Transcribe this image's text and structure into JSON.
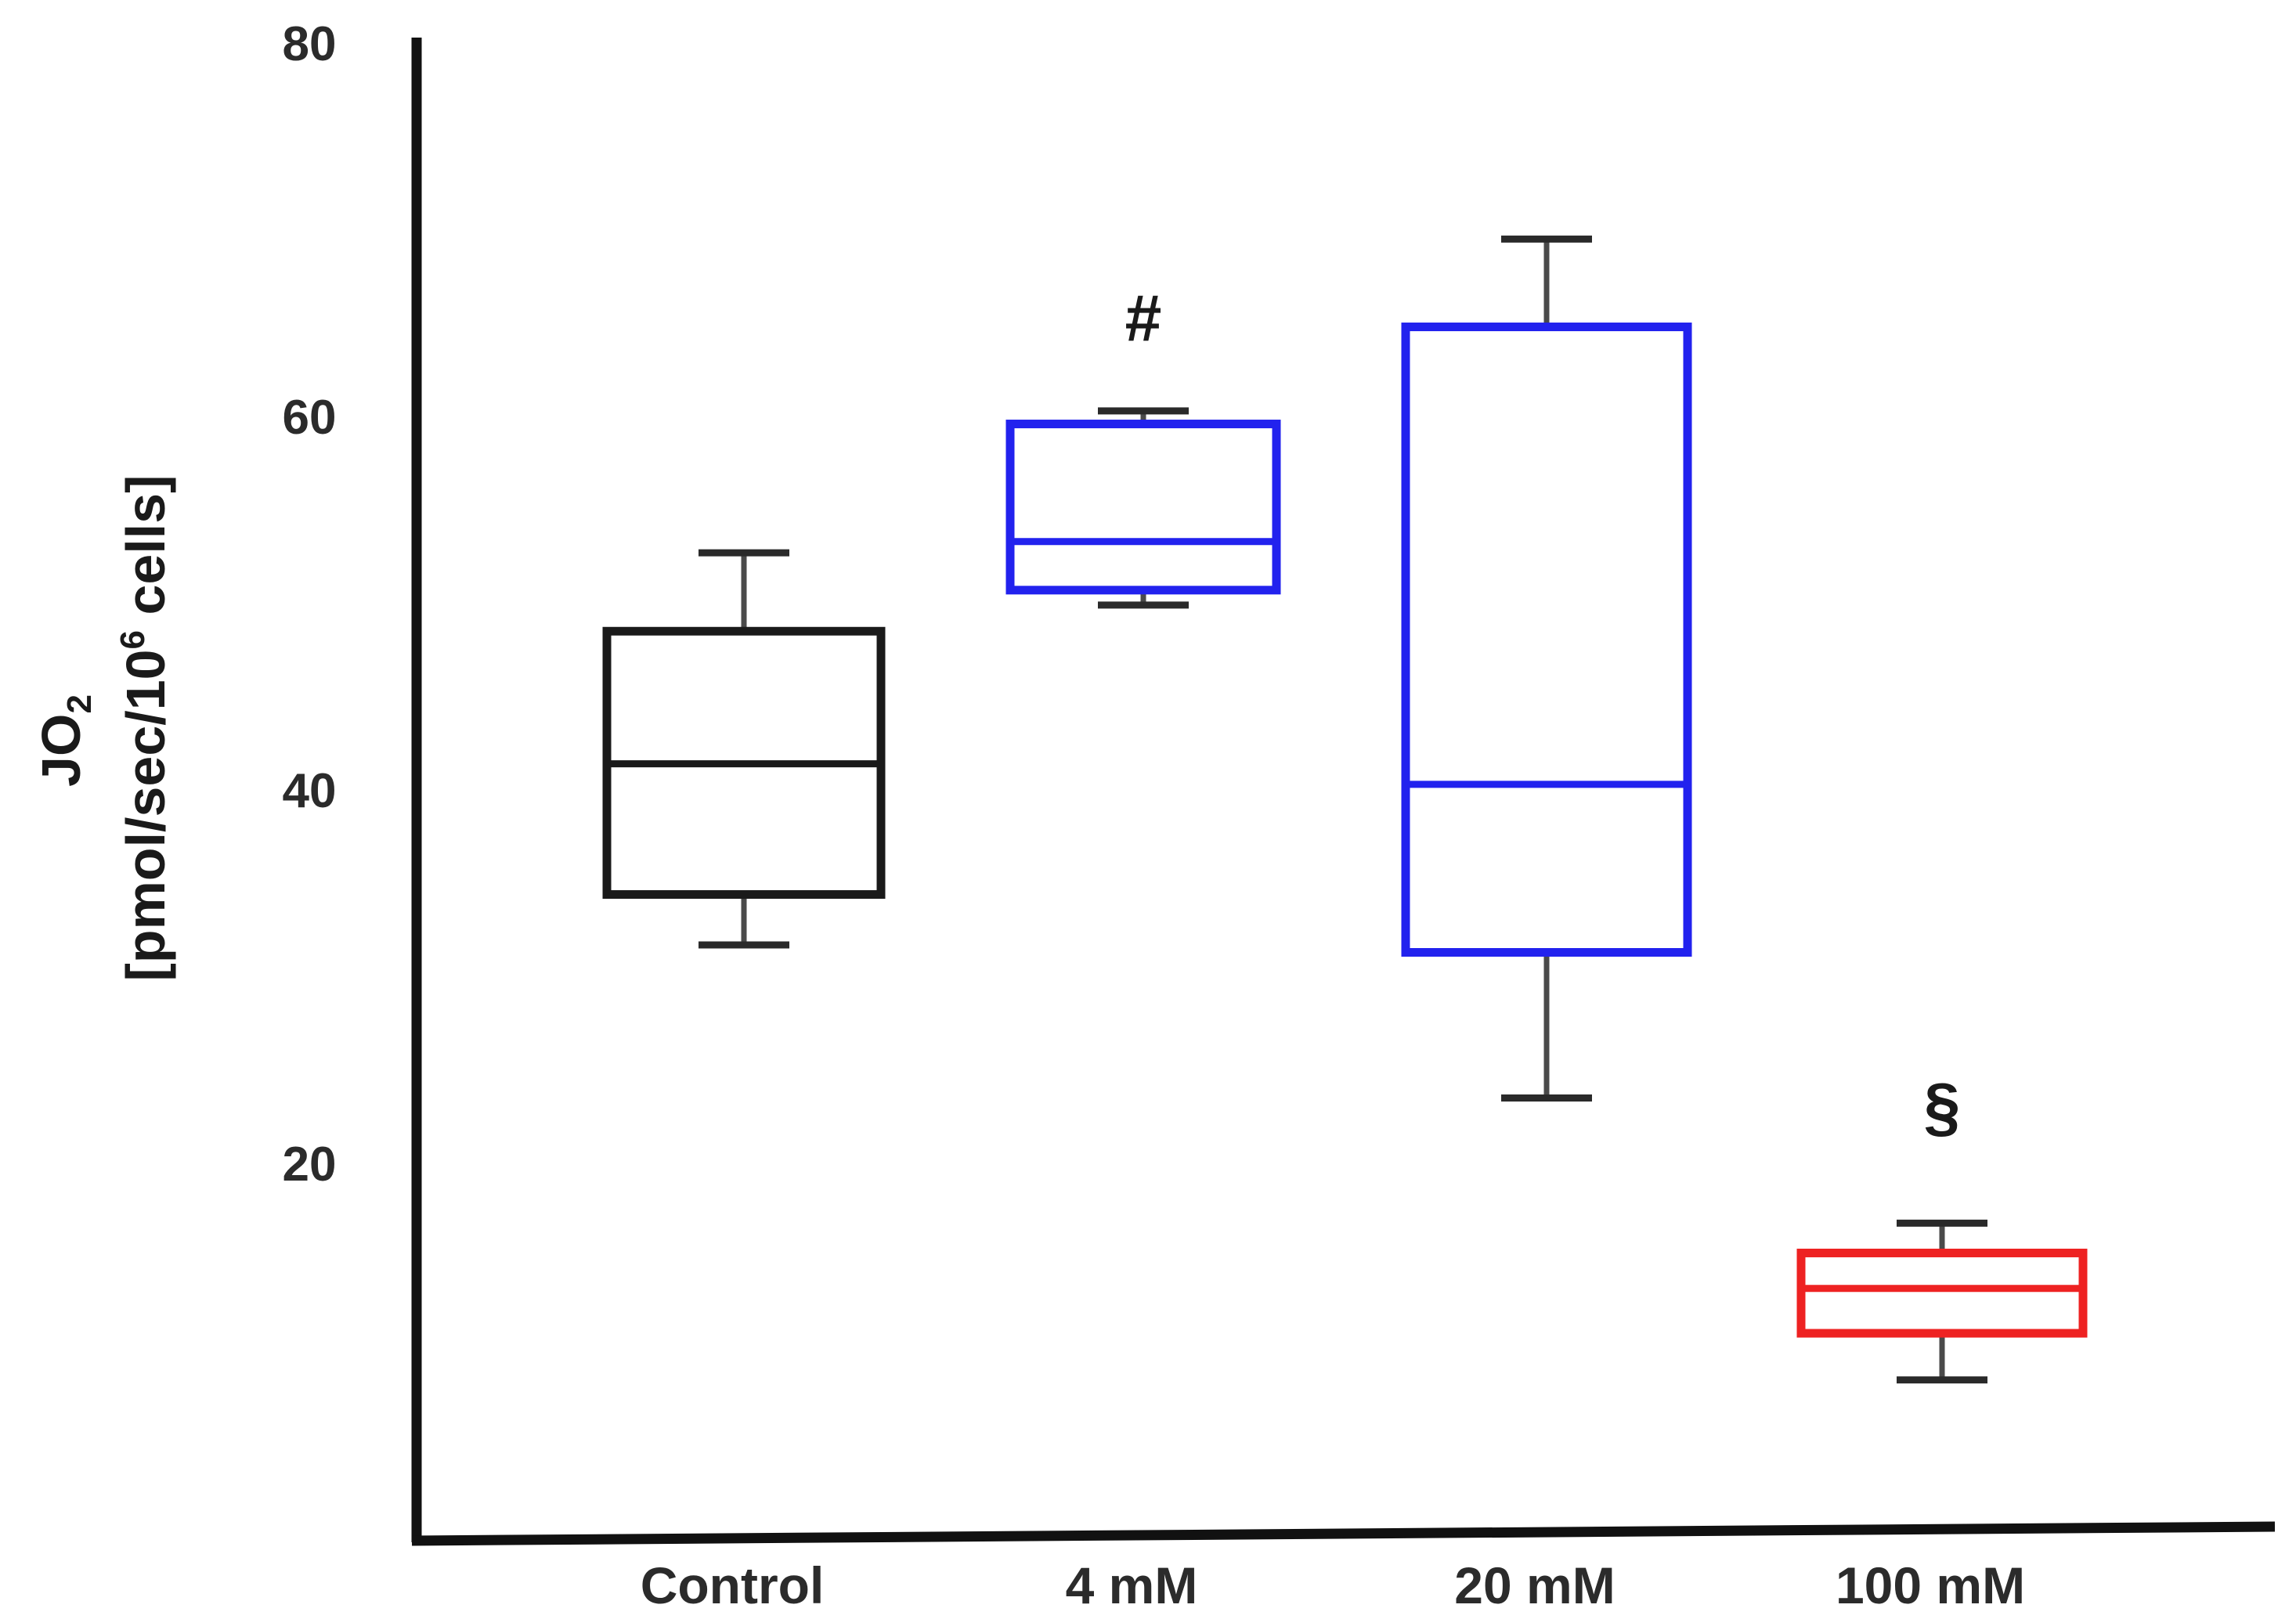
{
  "chart_data": {
    "type": "box",
    "categories": [
      "Control",
      "4 mM",
      "20 mM",
      "100 mM"
    ],
    "boxes": [
      {
        "category": "Control",
        "whisker_low": 31.7,
        "q1": 34.4,
        "median": 41.4,
        "q3": 48.5,
        "whisker_high": 52.7,
        "color": "#1a1a1a",
        "annotation": ""
      },
      {
        "category": "4 mM",
        "whisker_low": 49.9,
        "q1": 50.7,
        "median": 53.3,
        "q3": 59.6,
        "whisker_high": 60.3,
        "color": "#2222ee",
        "annotation": "#"
      },
      {
        "category": "20 mM",
        "whisker_low": 23.5,
        "q1": 31.3,
        "median": 40.3,
        "q3": 64.8,
        "whisker_high": 69.5,
        "color": "#2222ee",
        "annotation": ""
      },
      {
        "category": "100 mM",
        "whisker_low": 8.4,
        "q1": 10.9,
        "median": 13.3,
        "q3": 15.2,
        "whisker_high": 16.8,
        "color": "#ee2222",
        "annotation": "§"
      }
    ],
    "yticks": [
      20,
      40,
      60,
      80
    ],
    "ylim": [
      0,
      80
    ],
    "ylabel_line1": "JO",
    "ylabel_line1_sub": "2",
    "ylabel_line2": "[pmol/sec/10",
    "ylabel_line2_sup": "6",
    "ylabel_line2_end": " cells]",
    "xlabel": "",
    "title": "",
    "grid": false,
    "legend": "none"
  }
}
